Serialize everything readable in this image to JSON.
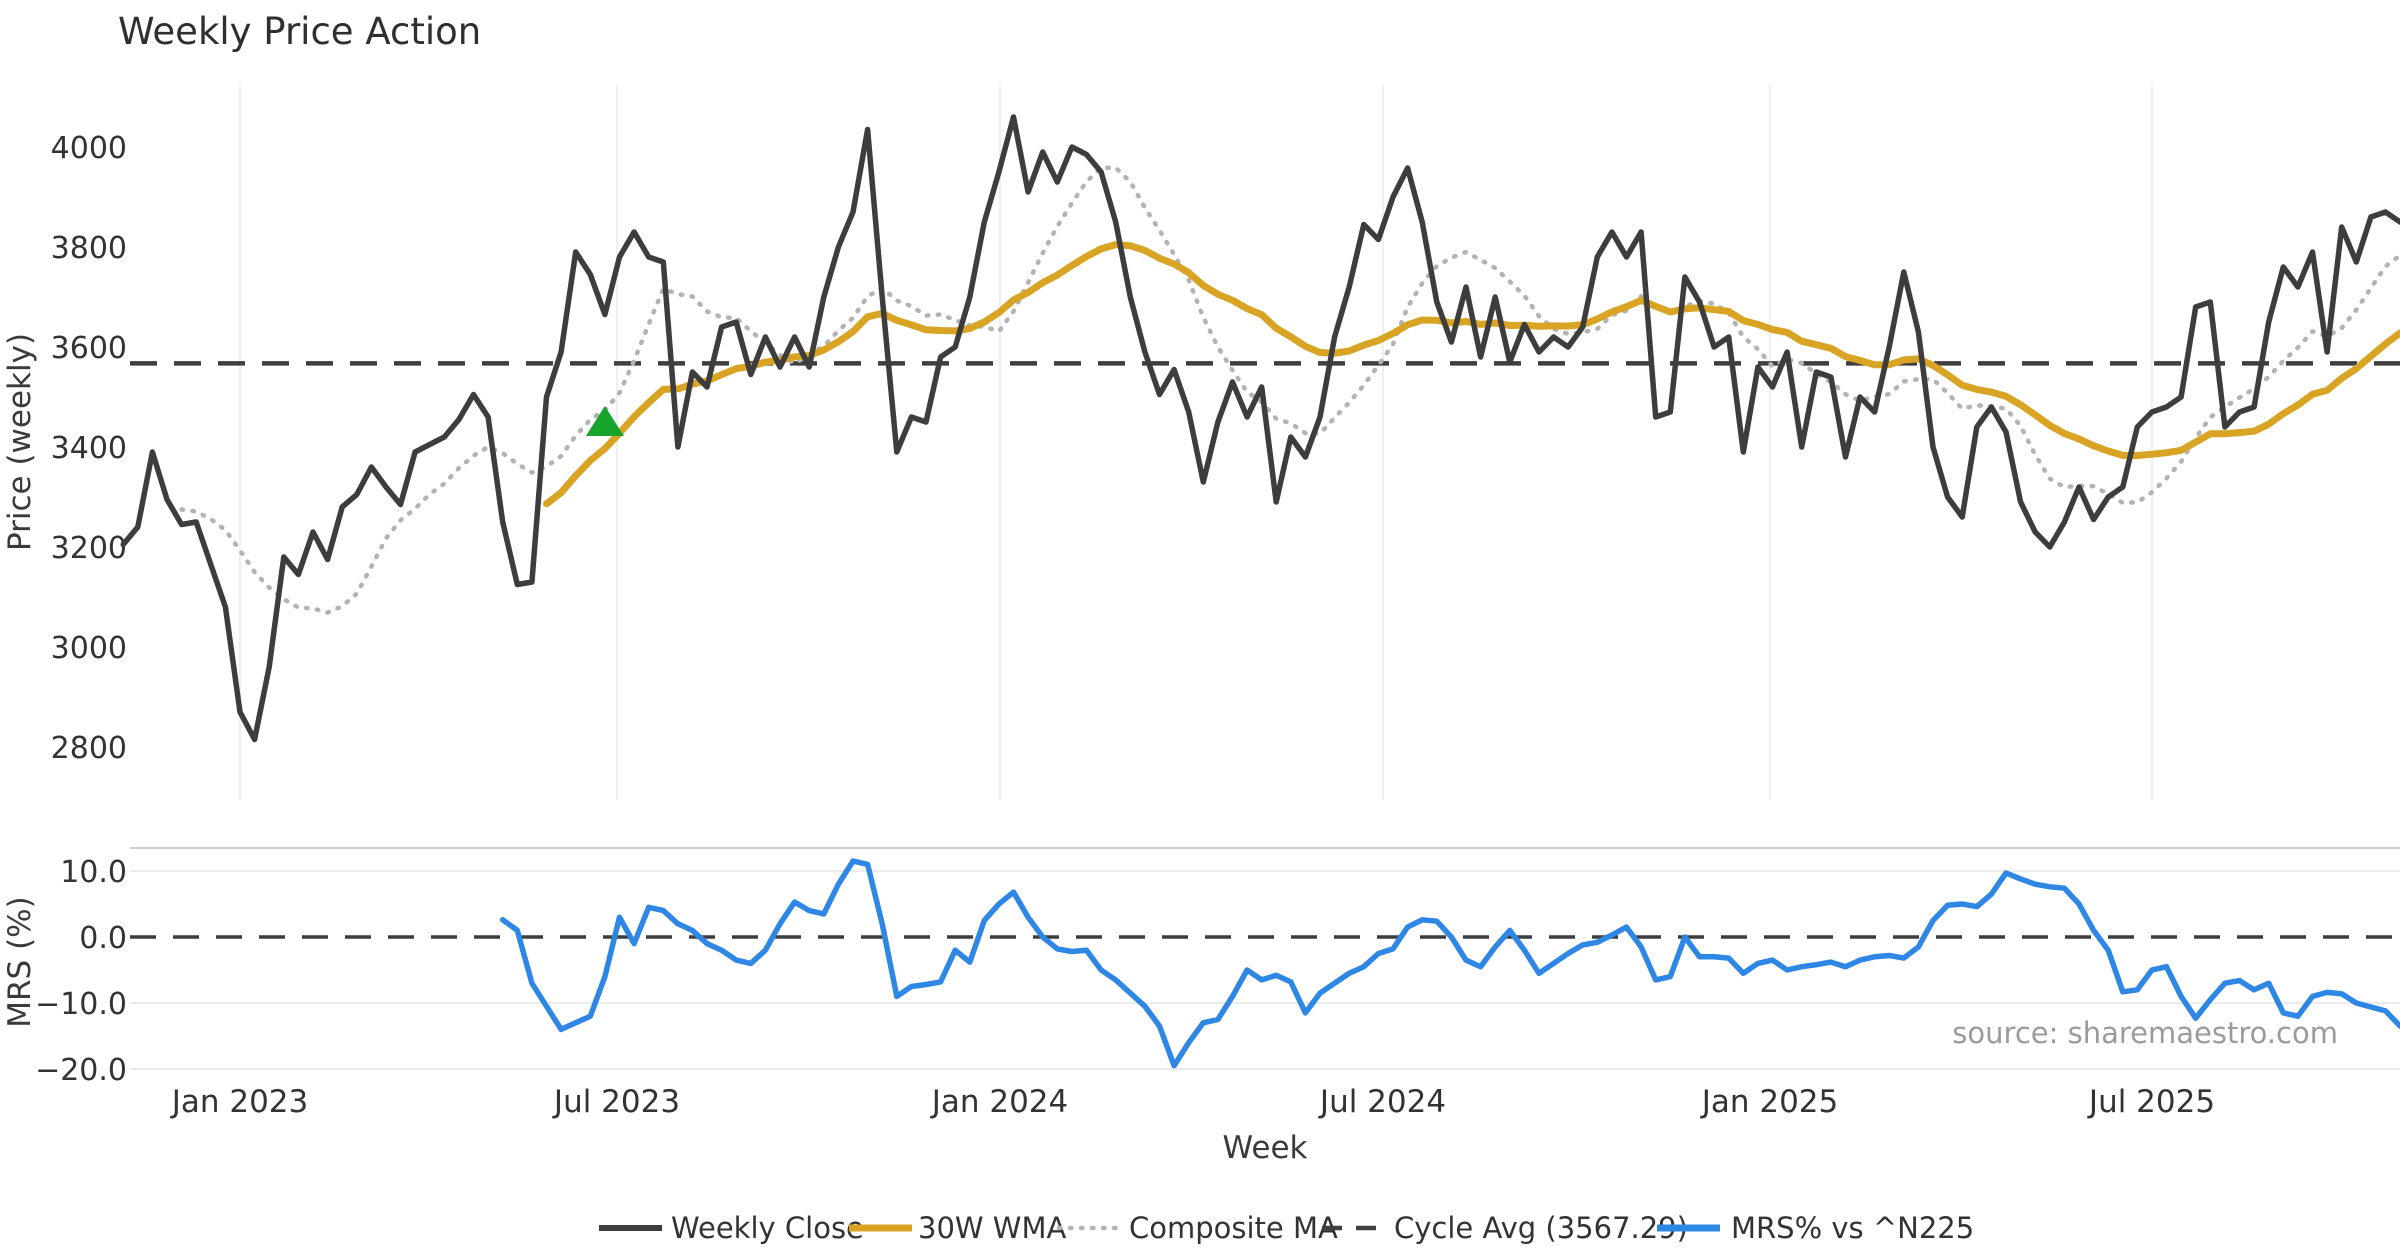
{
  "title": "Weekly Price Action",
  "source_note": "source: sharemaestro.com",
  "colors": {
    "weekly_close": "#3d3d3d",
    "wma_30w": "#d9a424",
    "composite_ma": "#b3b3b3",
    "cycle_avg": "#3f3f3f",
    "mrs": "#2e87e4",
    "buy_marker": "#16a42d",
    "grid": "#ececec",
    "background": "#ffffff"
  },
  "legend": {
    "items": [
      {
        "label": "Weekly Close",
        "style": "solid-dark"
      },
      {
        "label": "30W WMA",
        "style": "solid-gold"
      },
      {
        "label": "Composite MA",
        "style": "dotted-gray"
      },
      {
        "label": "Cycle Avg (3567.29)",
        "style": "dashed-dark"
      },
      {
        "label": "MRS% vs ^N225",
        "style": "solid-blue"
      }
    ]
  },
  "chart_data": {
    "type": "line",
    "xlabel": "Week",
    "x_is_weekly_index": true,
    "xticks": [
      {
        "week": 8,
        "label": "Jan 2023"
      },
      {
        "week": 34,
        "label": "Jul 2023"
      },
      {
        "week": 60,
        "label": "Jan 2024"
      },
      {
        "week": 86,
        "label": "Jul 2024"
      },
      {
        "week": 113,
        "label": "Jan 2025"
      },
      {
        "week": 139,
        "label": "Jul 2025"
      }
    ],
    "price_panel": {
      "ylabel": "Price (weekly)",
      "ylim": [
        2750,
        4120
      ],
      "yticks": [
        {
          "value": 4000,
          "label": "4000"
        },
        {
          "value": 3800,
          "label": "3800"
        },
        {
          "value": 3600,
          "label": "3600"
        },
        {
          "value": 3400,
          "label": "3400"
        },
        {
          "value": 3200,
          "label": "3200"
        },
        {
          "value": 3000,
          "label": "3000"
        },
        {
          "value": 2800,
          "label": "2800"
        }
      ],
      "cycle_avg": 3567.29,
      "weekly_close": [
        3205,
        3240,
        3390,
        3295,
        3245,
        3250,
        3165,
        3080,
        2870,
        2815,
        2960,
        3180,
        3145,
        3230,
        3175,
        3280,
        3305,
        3360,
        3320,
        3285,
        3390,
        3405,
        3420,
        3455,
        3505,
        3460,
        3250,
        3125,
        3130,
        3500,
        3590,
        3790,
        3745,
        3665,
        3780,
        3830,
        3780,
        3770,
        3400,
        3550,
        3520,
        3640,
        3650,
        3545,
        3620,
        3560,
        3620,
        3560,
        3700,
        3800,
        3870,
        4035,
        3700,
        3390,
        3460,
        3450,
        3580,
        3600,
        3700,
        3850,
        3950,
        4060,
        3910,
        3990,
        3930,
        4000,
        3985,
        3950,
        3850,
        3700,
        3590,
        3505,
        3555,
        3470,
        3330,
        3450,
        3530,
        3460,
        3520,
        3290,
        3420,
        3380,
        3460,
        3620,
        3720,
        3845,
        3815,
        3900,
        3958,
        3850,
        3690,
        3610,
        3720,
        3580,
        3700,
        3570,
        3645,
        3590,
        3620,
        3600,
        3640,
        3780,
        3830,
        3780,
        3830,
        3460,
        3470,
        3740,
        3690,
        3600,
        3620,
        3390,
        3560,
        3520,
        3590,
        3400,
        3550,
        3540,
        3380,
        3500,
        3470,
        3600,
        3750,
        3630,
        3400,
        3300,
        3260,
        3440,
        3480,
        3430,
        3290,
        3230,
        3200,
        3250,
        3320,
        3255,
        3300,
        3320,
        3440,
        3470,
        3480,
        3500,
        3680,
        3690,
        3440,
        3470,
        3480,
        3650,
        3760,
        3720,
        3790,
        3590,
        3840,
        3770,
        3860,
        3870,
        3850
      ],
      "wma_30w_window": 30,
      "composite_ma_window": 9,
      "buy_marker": {
        "week": 33,
        "price": 3450
      }
    },
    "mrs_panel": {
      "ylabel": "MRS (%)",
      "ylim": [
        -21.5,
        13.5
      ],
      "yticks": [
        {
          "value": 10,
          "label": "10.0"
        },
        {
          "value": 0,
          "label": "0.0"
        },
        {
          "value": -10,
          "label": "−10.0"
        },
        {
          "value": -20,
          "label": "−20.0"
        }
      ],
      "zero_line": 0,
      "start_week": 26,
      "mrs_values": [
        2.6,
        1.0,
        -7.0,
        -10.5,
        -14.0,
        -13.0,
        -12.0,
        -6.0,
        3.0,
        -1.0,
        4.5,
        4.0,
        2.0,
        1.0,
        -1.0,
        -2.0,
        -3.5,
        -4.0,
        -2.0,
        2.0,
        5.3,
        4.0,
        3.5,
        8.0,
        11.5,
        11.0,
        2.0,
        -9.0,
        -7.5,
        -7.2,
        -6.8,
        -2.0,
        -3.8,
        2.5,
        5.0,
        6.8,
        3.0,
        0.0,
        -1.8,
        -2.2,
        -2.0,
        -5.0,
        -6.5,
        -8.5,
        -10.5,
        -13.5,
        -19.5,
        -16.0,
        -13.0,
        -12.5,
        -9.0,
        -5.0,
        -6.5,
        -5.8,
        -6.8,
        -11.5,
        -8.5,
        -7.0,
        -5.5,
        -4.5,
        -2.5,
        -1.8,
        1.5,
        2.6,
        2.4,
        0.0,
        -3.5,
        -4.5,
        -1.5,
        1.0,
        -2.0,
        -5.5,
        -4.0,
        -2.5,
        -1.2,
        -0.8,
        0.3,
        1.5,
        -1.5,
        -6.5,
        -6.0,
        0.0,
        -3.0,
        -3.0,
        -3.2,
        -5.5,
        -4.0,
        -3.5,
        -5.0,
        -4.5,
        -4.2,
        -3.8,
        -4.5,
        -3.5,
        -3.0,
        -2.8,
        -3.2,
        -1.5,
        2.5,
        4.8,
        5.0,
        4.6,
        6.5,
        9.7,
        8.8,
        8.0,
        7.6,
        7.4,
        5.0,
        1.0,
        -2.0,
        -8.3,
        -8.0,
        -5.0,
        -4.5,
        -9.0,
        -12.3,
        -9.5,
        -7.0,
        -6.6,
        -8.0,
        -7.0,
        -11.5,
        -12.0,
        -9.0,
        -8.4,
        -8.6,
        -10.0,
        -10.6,
        -11.2,
        -13.5
      ]
    }
  }
}
